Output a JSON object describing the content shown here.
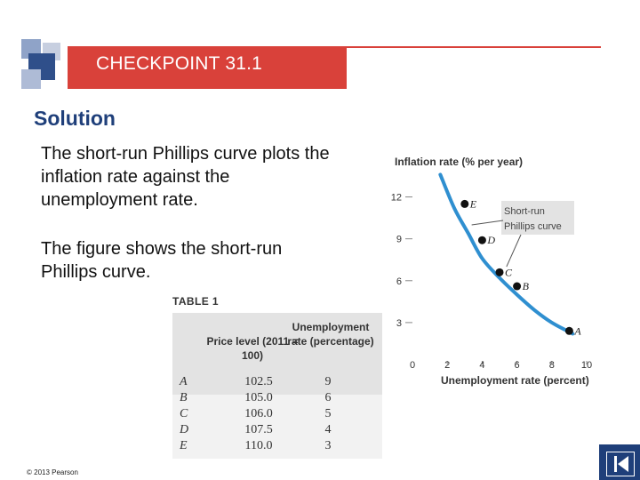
{
  "header": {
    "title": "CHECKPOINT 31.1"
  },
  "solution_heading": "Solution",
  "paragraphs": [
    "The short-run Phillips curve plots the inflation rate against the unemployment rate.",
    "The figure shows the short-run Phillips curve."
  ],
  "table": {
    "title": "TABLE 1",
    "col_price": "Price level (2011 = 100)",
    "col_unemp": "Unemployment rate (percentage)",
    "rows": [
      {
        "label": "A",
        "price": "102.5",
        "unemp": "9"
      },
      {
        "label": "B",
        "price": "105.0",
        "unemp": "6"
      },
      {
        "label": "C",
        "price": "106.0",
        "unemp": "5"
      },
      {
        "label": "D",
        "price": "107.5",
        "unemp": "4"
      },
      {
        "label": "E",
        "price": "110.0",
        "unemp": "3"
      }
    ]
  },
  "chart_data": {
    "type": "line",
    "ylabel": "Inflation rate (% per year)",
    "xlabel": "Unemployment rate (percent)",
    "xlim": [
      0,
      10
    ],
    "ylim": [
      0,
      13.5
    ],
    "xticks": [
      "0",
      "2",
      "4",
      "6",
      "8",
      "10"
    ],
    "yticks": [
      "3",
      "6",
      "9",
      "12"
    ],
    "series": [
      {
        "name": "Short-run Phillips curve",
        "color": "#2f8fd0"
      }
    ],
    "curve_x": [
      1.6,
      2.4,
      3.2,
      4,
      5,
      6,
      7,
      8,
      9.2
    ],
    "curve_y": [
      13.6,
      11.2,
      9.4,
      7.6,
      6.2,
      5.0,
      3.9,
      3.0,
      2.2
    ],
    "points": [
      {
        "label": "E",
        "x": 3,
        "y": 11.5
      },
      {
        "label": "D",
        "x": 4,
        "y": 8.9
      },
      {
        "label": "C",
        "x": 5,
        "y": 6.6
      },
      {
        "label": "B",
        "x": 6,
        "y": 5.6
      },
      {
        "label": "A",
        "x": 9,
        "y": 2.4
      }
    ],
    "annotation": "Short-run Phillips curve",
    "grid": false
  },
  "footer": {
    "copyright": "© 2013 Pearson"
  },
  "colors": {
    "accent": "#d9413a",
    "navy": "#1f3f7a",
    "curve": "#2f8fd0"
  }
}
